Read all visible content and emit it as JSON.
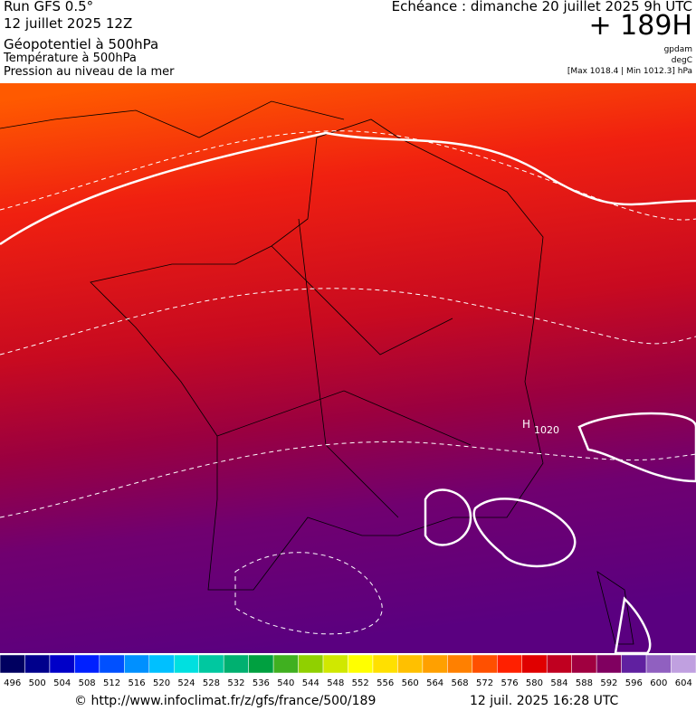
{
  "header": {
    "run": "Run GFS 0.5°",
    "run_date": "12 juillet 2025 12Z",
    "field1": "Géopotentiel à 500hPa",
    "field2": "Température à 500hPa",
    "field3": "Pression au niveau de la mer",
    "valid": "Echéance : dimanche 20 juillet 2025 9h UTC",
    "lead": "+ 189H",
    "unit1": "gpdam",
    "unit2": "degC",
    "pressure_range": "[Max 1018.4 | Min 1012.3] hPa"
  },
  "map": {
    "high_label": "H",
    "isobar_label": "1020"
  },
  "legend": {
    "labels": [
      496,
      500,
      504,
      508,
      512,
      516,
      520,
      524,
      528,
      532,
      536,
      540,
      544,
      548,
      552,
      556,
      560,
      564,
      568,
      572,
      576,
      580,
      584,
      588,
      592,
      596,
      600,
      604
    ],
    "colors": [
      "#000060",
      "#00008c",
      "#0000c8",
      "#0020ff",
      "#0050ff",
      "#0090ff",
      "#00c0ff",
      "#00e0e0",
      "#00c8a0",
      "#00b070",
      "#00a040",
      "#40b020",
      "#90d000",
      "#d0e800",
      "#ffff00",
      "#ffe000",
      "#ffc000",
      "#ffa000",
      "#ff8000",
      "#ff5000",
      "#ff2000",
      "#e00000",
      "#c00020",
      "#a00040",
      "#800060",
      "#6020a0",
      "#9060c0",
      "#c0a0e0"
    ]
  },
  "footer": {
    "url": "© http://www.infoclimat.fr/z/gfs/france/500/189",
    "timestamp": "12 juil. 2025 16:28 UTC"
  }
}
